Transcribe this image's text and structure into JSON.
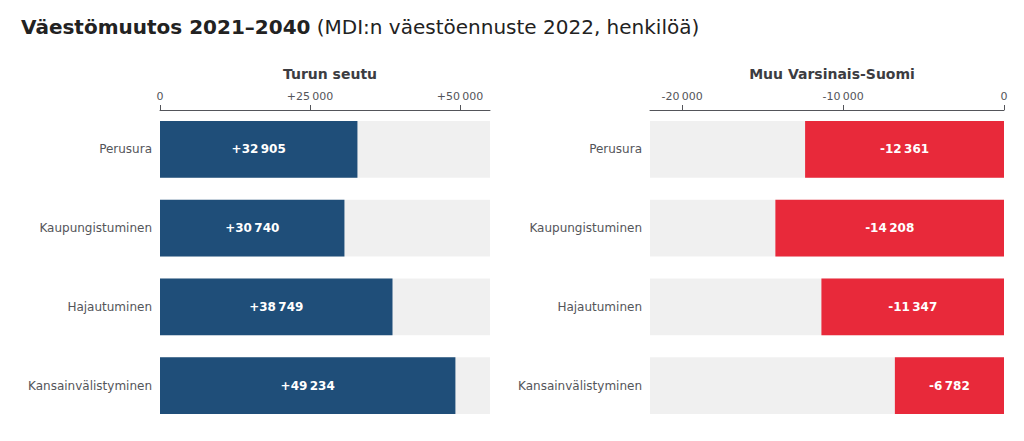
{
  "title": "Väestömuutos 2021–2040",
  "subtitle": "(MDI:n väestöennuste 2022, henkilöä)",
  "chart_data": [
    {
      "type": "bar",
      "orientation": "horizontal",
      "title": "Turun seutu",
      "categories": [
        "Perusura",
        "Kaupungistuminen",
        "Hajautuminen",
        "Kansainvälistyminen"
      ],
      "values": [
        32905,
        30740,
        38749,
        49234
      ],
      "value_labels": [
        "+32 905",
        "+30 740",
        "+38 749",
        "+49 234"
      ],
      "data_labels": true,
      "color": "#1f4e79",
      "xlim": [
        0,
        55000
      ],
      "xticks": [
        0,
        {
          "value": 25000,
          "label": "+25 000"
        },
        {
          "value": 50000,
          "label": "+50 000"
        }
      ]
    },
    {
      "type": "bar",
      "orientation": "horizontal",
      "title": "Muu Varsinais-Suomi",
      "categories": [
        "Perusura",
        "Kaupungistuminen",
        "Hajautuminen",
        "Kansainvälistyminen"
      ],
      "values": [
        -12361,
        -14208,
        -11347,
        -6782
      ],
      "value_labels": [
        "-12 361",
        "-14 208",
        "-11 347",
        "-6 782"
      ],
      "data_labels": true,
      "color": "#e8293a",
      "xlim": [
        -22000,
        0
      ],
      "xticks": [
        {
          "value": -20000,
          "label": "-20 000"
        },
        {
          "value": -10000,
          "label": "-10 000"
        },
        0
      ]
    }
  ]
}
